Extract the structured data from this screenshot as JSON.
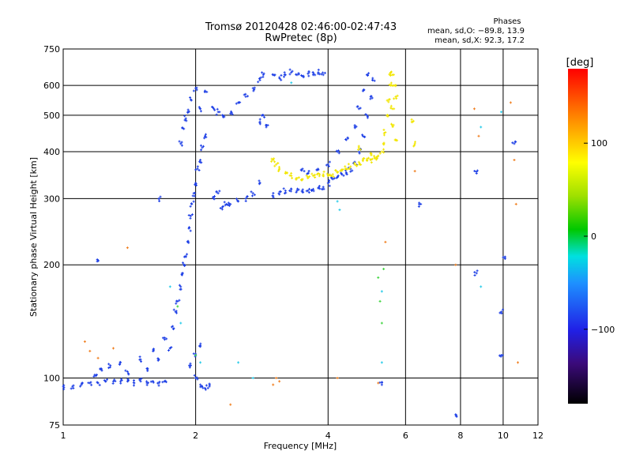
{
  "chart_data": {
    "type": "scatter",
    "title": "Tromsø 20120428 02:46:00-02:47:43",
    "subtitle": "RwPretec (8p)",
    "xlabel": "Frequency [MHz]",
    "ylabel": "Stationary phase Virtual Height [km]",
    "x_scale": "log",
    "y_scale": "log",
    "xlim": [
      1,
      12
    ],
    "ylim": [
      75,
      750
    ],
    "x_ticks": [
      1,
      2,
      4,
      6,
      8,
      10,
      12
    ],
    "y_ticks": [
      75,
      100,
      200,
      300,
      400,
      500,
      600,
      750
    ],
    "grid_x": [
      2,
      4,
      6,
      8,
      10
    ],
    "grid_y": [
      100,
      200,
      300,
      400,
      500,
      600
    ],
    "grid": true,
    "stats": {
      "heading": "Phases",
      "line_o": "mean, sd,O: −89.8, 13.9",
      "line_x": "mean, sd,X:  92.3, 17.2"
    },
    "colorbar": {
      "label": "[deg]",
      "range": [
        -180,
        180
      ],
      "ticks": [
        {
          "value": 100,
          "label": "100"
        },
        {
          "value": 0,
          "label": "0"
        },
        {
          "value": -100,
          "label": "−100"
        }
      ]
    },
    "series": [
      {
        "mode": "O",
        "color": "#1d3fe6",
        "phase_mean": -89.8,
        "points": [
          [
            1.0,
            95
          ],
          [
            1.05,
            95
          ],
          [
            1.1,
            96
          ],
          [
            1.15,
            97
          ],
          [
            1.2,
            97
          ],
          [
            1.25,
            98
          ],
          [
            1.3,
            98
          ],
          [
            1.35,
            98
          ],
          [
            1.4,
            98
          ],
          [
            1.45,
            97
          ],
          [
            1.5,
            98
          ],
          [
            1.55,
            97
          ],
          [
            1.6,
            98
          ],
          [
            1.65,
            97
          ],
          [
            1.7,
            98
          ],
          [
            1.18,
            102
          ],
          [
            1.22,
            106
          ],
          [
            1.28,
            108
          ],
          [
            1.35,
            110
          ],
          [
            1.4,
            104
          ],
          [
            1.5,
            112
          ],
          [
            1.55,
            106
          ],
          [
            1.6,
            118
          ],
          [
            1.65,
            112
          ],
          [
            1.7,
            128
          ],
          [
            1.75,
            120
          ],
          [
            1.78,
            135
          ],
          [
            1.8,
            150
          ],
          [
            1.82,
            160
          ],
          [
            1.85,
            175
          ],
          [
            1.87,
            190
          ],
          [
            1.88,
            200
          ],
          [
            1.9,
            210
          ],
          [
            1.92,
            230
          ],
          [
            1.93,
            250
          ],
          [
            1.95,
            270
          ],
          [
            1.96,
            290
          ],
          [
            1.98,
            310
          ],
          [
            2.0,
            330
          ],
          [
            2.02,
            360
          ],
          [
            2.05,
            380
          ],
          [
            2.07,
            410
          ],
          [
            2.1,
            440
          ],
          [
            1.85,
            420
          ],
          [
            1.88,
            460
          ],
          [
            1.9,
            490
          ],
          [
            1.92,
            510
          ],
          [
            1.95,
            550
          ],
          [
            2.0,
            590
          ],
          [
            2.05,
            520
          ],
          [
            2.1,
            580
          ],
          [
            2.2,
            520
          ],
          [
            2.25,
            510
          ],
          [
            2.3,
            500
          ],
          [
            2.4,
            505
          ],
          [
            2.5,
            540
          ],
          [
            2.6,
            560
          ],
          [
            2.7,
            590
          ],
          [
            2.8,
            620
          ],
          [
            2.85,
            640
          ],
          [
            2.2,
            300
          ],
          [
            2.25,
            310
          ],
          [
            2.3,
            285
          ],
          [
            2.35,
            290
          ],
          [
            2.4,
            290
          ],
          [
            2.5,
            295
          ],
          [
            2.6,
            300
          ],
          [
            2.7,
            310
          ],
          [
            2.8,
            330
          ],
          [
            2.8,
            480
          ],
          [
            2.85,
            500
          ],
          [
            2.9,
            470
          ],
          [
            3.0,
            640
          ],
          [
            3.1,
            630
          ],
          [
            3.2,
            640
          ],
          [
            3.3,
            650
          ],
          [
            3.4,
            640
          ],
          [
            3.5,
            635
          ],
          [
            3.6,
            645
          ],
          [
            3.7,
            640
          ],
          [
            3.8,
            650
          ],
          [
            3.9,
            640
          ],
          [
            3.0,
            305
          ],
          [
            3.1,
            308
          ],
          [
            3.2,
            315
          ],
          [
            3.3,
            318
          ],
          [
            3.4,
            315
          ],
          [
            3.5,
            312
          ],
          [
            3.6,
            315
          ],
          [
            3.7,
            318
          ],
          [
            3.8,
            320
          ],
          [
            3.9,
            322
          ],
          [
            4.0,
            330
          ],
          [
            4.1,
            338
          ],
          [
            4.2,
            342
          ],
          [
            4.3,
            348
          ],
          [
            4.4,
            352
          ],
          [
            4.5,
            360
          ],
          [
            4.6,
            375
          ],
          [
            4.7,
            400
          ],
          [
            4.8,
            440
          ],
          [
            4.9,
            500
          ],
          [
            5.0,
            560
          ],
          [
            5.05,
            620
          ],
          [
            3.5,
            360
          ],
          [
            3.6,
            350
          ],
          [
            3.8,
            358
          ],
          [
            4.0,
            370
          ],
          [
            4.2,
            400
          ],
          [
            4.4,
            430
          ],
          [
            4.6,
            470
          ],
          [
            4.7,
            520
          ],
          [
            4.8,
            580
          ],
          [
            4.9,
            640
          ],
          [
            2.0,
            100
          ],
          [
            2.05,
            96
          ],
          [
            2.1,
            94
          ],
          [
            2.15,
            95
          ],
          [
            1.95,
            108
          ],
          [
            2.0,
            115
          ],
          [
            2.05,
            122
          ],
          [
            1.2,
            205
          ],
          [
            1.65,
            300
          ],
          [
            6.5,
            290
          ],
          [
            8.7,
            190
          ],
          [
            9.9,
            150
          ],
          [
            10.1,
            210
          ],
          [
            10.6,
            420
          ],
          [
            7.8,
            80
          ],
          [
            5.3,
            96
          ],
          [
            8.7,
            350
          ],
          [
            9.9,
            115
          ]
        ]
      },
      {
        "mode": "X",
        "color": "#f2e600",
        "phase_mean": 92.3,
        "points": [
          [
            3.0,
            380
          ],
          [
            3.05,
            370
          ],
          [
            3.1,
            360
          ],
          [
            3.2,
            350
          ],
          [
            3.3,
            345
          ],
          [
            3.4,
            340
          ],
          [
            3.5,
            338
          ],
          [
            3.6,
            340
          ],
          [
            3.7,
            345
          ],
          [
            3.8,
            350
          ],
          [
            3.9,
            348
          ],
          [
            4.0,
            345
          ],
          [
            4.1,
            348
          ],
          [
            4.2,
            352
          ],
          [
            4.3,
            356
          ],
          [
            4.4,
            360
          ],
          [
            4.5,
            365
          ],
          [
            4.6,
            370
          ],
          [
            4.7,
            375
          ],
          [
            4.8,
            378
          ],
          [
            4.9,
            380
          ],
          [
            5.0,
            380
          ],
          [
            5.1,
            385
          ],
          [
            5.2,
            390
          ],
          [
            5.3,
            400
          ],
          [
            5.35,
            420
          ],
          [
            5.4,
            450
          ],
          [
            5.45,
            500
          ],
          [
            5.5,
            550
          ],
          [
            5.55,
            600
          ],
          [
            5.6,
            640
          ],
          [
            4.7,
            410
          ],
          [
            5.0,
            395
          ],
          [
            6.2,
            480
          ],
          [
            6.3,
            420
          ],
          [
            5.7,
            430
          ],
          [
            5.6,
            470
          ],
          [
            5.6,
            520
          ],
          [
            5.7,
            560
          ],
          [
            5.65,
            600
          ],
          [
            5.55,
            650
          ]
        ]
      },
      {
        "mode": "X",
        "color": "#f07c1a",
        "phase_mean": 150,
        "points": [
          [
            1.12,
            125
          ],
          [
            1.15,
            118
          ],
          [
            1.2,
            113
          ],
          [
            1.3,
            120
          ],
          [
            1.4,
            222
          ],
          [
            3.0,
            96
          ],
          [
            3.05,
            100
          ],
          [
            3.1,
            98
          ],
          [
            4.2,
            100
          ],
          [
            5.2,
            97
          ],
          [
            5.4,
            230
          ],
          [
            6.3,
            355
          ],
          [
            7.8,
            200
          ],
          [
            8.6,
            520
          ],
          [
            8.8,
            440
          ],
          [
            10.4,
            540
          ],
          [
            10.6,
            380
          ],
          [
            10.7,
            290
          ],
          [
            10.8,
            110
          ],
          [
            2.4,
            85
          ]
        ]
      },
      {
        "mode": "O",
        "color": "#1fc9e8",
        "phase_mean": -40,
        "points": [
          [
            1.75,
            175
          ],
          [
            1.85,
            140
          ],
          [
            2.05,
            110
          ],
          [
            2.5,
            110
          ],
          [
            2.7,
            100
          ],
          [
            3.3,
            610
          ],
          [
            4.2,
            295
          ],
          [
            4.25,
            280
          ],
          [
            5.3,
            110
          ],
          [
            5.3,
            170
          ],
          [
            8.9,
            465
          ],
          [
            8.9,
            175
          ],
          [
            9.9,
            510
          ]
        ]
      },
      {
        "mode": "O",
        "color": "#3ad43a",
        "phase_mean": 20,
        "points": [
          [
            1.82,
            155
          ],
          [
            2.0,
            115
          ],
          [
            5.2,
            185
          ],
          [
            5.25,
            160
          ],
          [
            5.3,
            140
          ],
          [
            5.35,
            195
          ]
        ]
      }
    ]
  }
}
